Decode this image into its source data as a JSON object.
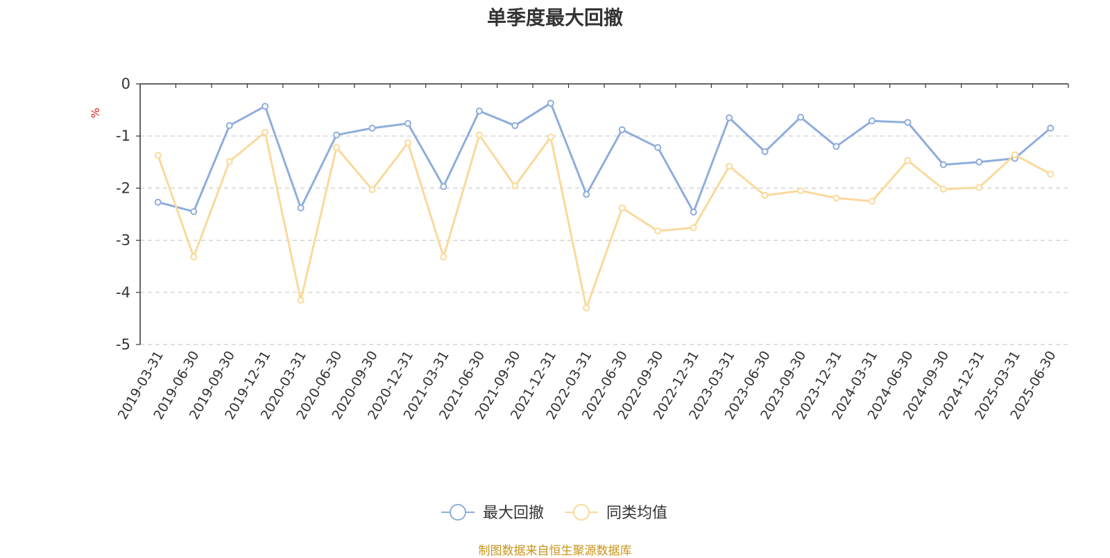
{
  "chart_data": {
    "type": "line",
    "title": "单季度最大回撤",
    "ylabel": "%",
    "xlabel": "",
    "ylim": [
      -5,
      0
    ],
    "yticks": [
      0,
      -1,
      -2,
      -3,
      -4,
      -5
    ],
    "grid": true,
    "legend_position": "bottom",
    "categories": [
      "2019-03-31",
      "2019-06-30",
      "2019-09-30",
      "2019-12-31",
      "2020-03-31",
      "2020-06-30",
      "2020-09-30",
      "2020-12-31",
      "2021-03-31",
      "2021-06-30",
      "2021-09-30",
      "2021-12-31",
      "2022-03-31",
      "2022-06-30",
      "2022-09-30",
      "2022-12-31",
      "2023-03-31",
      "2023-06-30",
      "2023-09-30",
      "2023-12-31",
      "2024-03-31",
      "2024-06-30",
      "2024-09-30",
      "2024-12-31",
      "2025-03-31",
      "2025-06-30"
    ],
    "series": [
      {
        "name": "最大回撤",
        "color": "#8eaddb",
        "values": [
          -2.27,
          -2.45,
          -0.8,
          -0.43,
          -2.38,
          -0.98,
          -0.85,
          -0.76,
          -1.97,
          -0.52,
          -0.8,
          -0.37,
          -2.12,
          -0.88,
          -1.22,
          -2.46,
          -0.65,
          -1.3,
          -0.64,
          -1.2,
          -0.71,
          -0.74,
          -1.55,
          -1.5,
          -1.43,
          -0.85
        ]
      },
      {
        "name": "同类均值",
        "color": "#fad99a",
        "values": [
          -1.37,
          -3.32,
          -1.49,
          -0.93,
          -4.15,
          -1.22,
          -2.03,
          -1.13,
          -3.32,
          -0.98,
          -1.96,
          -1.02,
          -4.3,
          -2.38,
          -2.82,
          -2.76,
          -1.58,
          -2.14,
          -2.05,
          -2.19,
          -2.25,
          -1.47,
          -2.02,
          -1.99,
          -1.36,
          -1.73
        ]
      }
    ]
  },
  "footer": {
    "source": "制图数据来自恒生聚源数据库"
  }
}
